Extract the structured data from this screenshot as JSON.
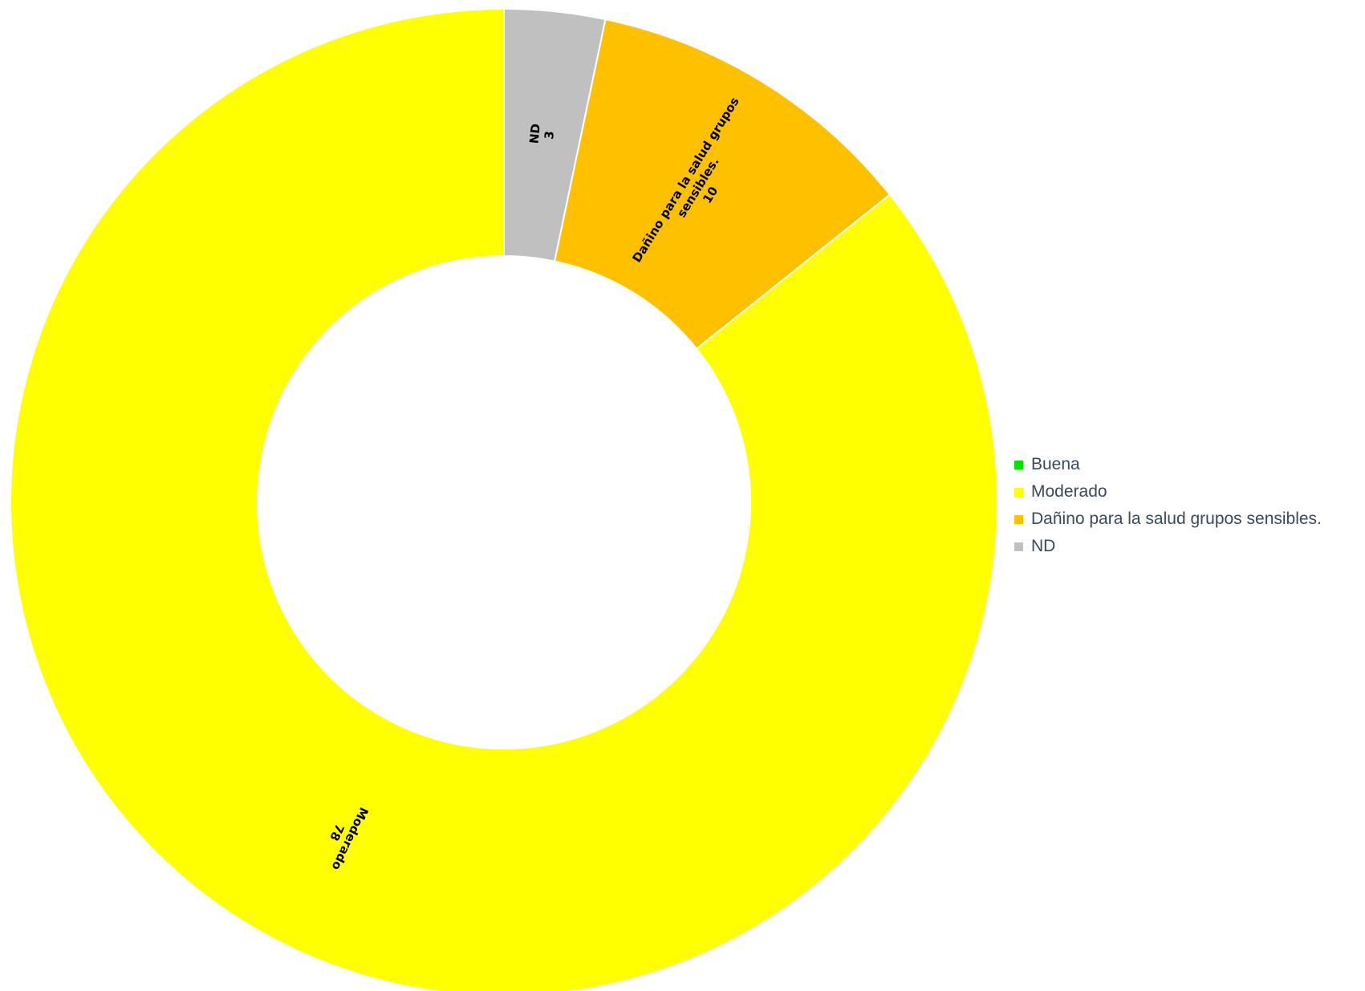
{
  "chart_data": {
    "type": "pie",
    "donut": true,
    "title": "",
    "legend_position": "right",
    "slices": [
      {
        "label": "Buena",
        "value": 0,
        "color": "#00e400"
      },
      {
        "label": "Moderado",
        "value": 78,
        "color": "#ffff00"
      },
      {
        "label": "Dañino para la salud grupos sensibles.",
        "value": 10,
        "color": "#ffc000"
      },
      {
        "label": "ND",
        "value": 3,
        "color": "#c0c0c0"
      }
    ],
    "data_labels": [
      {
        "slice": "Moderado",
        "lines": [
          "Moderado",
          "78"
        ]
      },
      {
        "slice": "Dañino para la salud grupos sensibles.",
        "lines": [
          "Dañino para la salud grupos",
          "sensibles.",
          "10"
        ]
      },
      {
        "slice": "ND",
        "lines": [
          "ND",
          "3"
        ]
      }
    ]
  }
}
